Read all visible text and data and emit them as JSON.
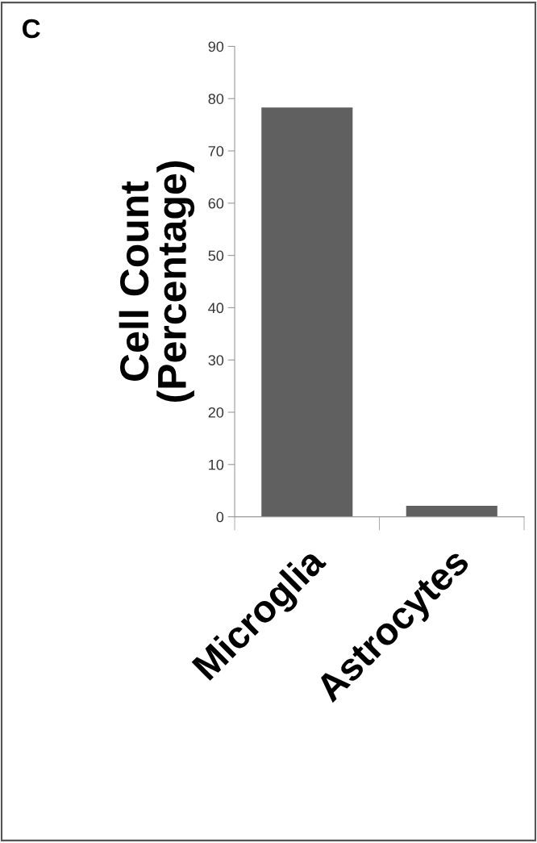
{
  "chart_data": {
    "type": "bar",
    "ylabel": "Cell Count\n(Percentage)",
    "annotations": [
      "C"
    ],
    "categories": [
      "Microglia",
      "Astrocytes"
    ],
    "values": [
      78.3,
      2.1
    ],
    "color": "#606060",
    "ylim": [
      0,
      90
    ],
    "yticks": [
      0,
      10,
      20,
      30,
      40,
      50,
      60,
      70,
      80,
      90
    ],
    "grid": false
  }
}
